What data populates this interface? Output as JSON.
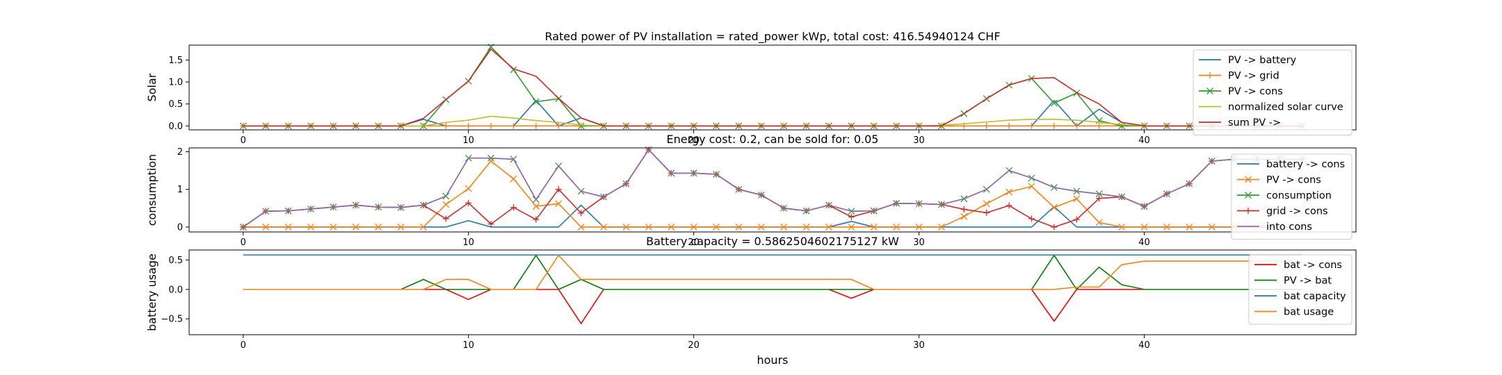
{
  "figure": {
    "xlabel": "hours"
  },
  "chart_data": [
    {
      "type": "line",
      "title": "Rated power of PV installation = rated_power kWp, total cost: 416.54940124 CHF",
      "xlabel": "",
      "ylabel": "Solar",
      "xlim": [
        -2.4,
        49.4
      ],
      "ylim": [
        -0.09,
        1.84
      ],
      "xticks": [
        0,
        10,
        20,
        30,
        40
      ],
      "yticks": [
        0.0,
        0.5,
        1.0,
        1.5
      ],
      "ytick_labels": [
        "0.0",
        "0.5",
        "1.0",
        "1.5"
      ],
      "grid": false,
      "legend_position": "top-right",
      "x": [
        0,
        1,
        2,
        3,
        4,
        5,
        6,
        7,
        8,
        9,
        10,
        11,
        12,
        13,
        14,
        15,
        16,
        17,
        18,
        19,
        20,
        21,
        22,
        23,
        24,
        25,
        26,
        27,
        28,
        29,
        30,
        31,
        32,
        33,
        34,
        35,
        36,
        37,
        38,
        39,
        40,
        41,
        42,
        43,
        44,
        45,
        46,
        47
      ],
      "series": [
        {
          "name": "PV -> battery",
          "color": "#1f77b4",
          "marker": "none",
          "values": [
            0,
            0,
            0,
            0,
            0,
            0,
            0,
            0,
            0.15,
            0,
            0,
            0,
            0,
            0.58,
            0,
            0.18,
            0,
            0,
            0,
            0,
            0,
            0,
            0,
            0,
            0,
            0,
            0,
            0,
            0,
            0,
            0,
            0,
            0,
            0,
            0,
            0,
            0.58,
            0,
            0.38,
            0.08,
            0,
            0,
            0,
            0,
            0,
            0,
            0,
            0
          ]
        },
        {
          "name": "PV -> grid",
          "color": "#ff7f0e",
          "marker": "plus",
          "values": [
            0,
            0,
            0,
            0,
            0,
            0,
            0,
            0,
            0,
            0,
            0,
            0,
            0,
            0,
            0,
            0,
            0,
            0,
            0,
            0,
            0,
            0,
            0,
            0,
            0,
            0,
            0,
            0,
            0,
            0,
            0,
            0,
            0,
            0,
            0,
            0,
            0,
            0,
            0,
            0,
            0,
            0,
            0,
            0,
            0,
            0,
            0,
            0
          ]
        },
        {
          "name": "PV -> cons",
          "color": "#2ca02c",
          "marker": "x",
          "values": [
            0,
            0,
            0,
            0,
            0,
            0,
            0,
            0,
            0,
            0.6,
            1.02,
            1.8,
            1.28,
            0.55,
            0.62,
            0,
            0,
            0,
            0,
            0,
            0,
            0,
            0,
            0,
            0,
            0,
            0,
            0,
            0,
            0,
            0,
            0,
            0.28,
            0.62,
            0.93,
            1.08,
            0.52,
            0.75,
            0.12,
            0,
            0,
            0,
            0,
            0,
            0,
            0,
            0,
            0
          ]
        },
        {
          "name": "normalized solar curve",
          "color": "#bcbd22",
          "marker": "none",
          "values": [
            0,
            0,
            0,
            0,
            0,
            0,
            0,
            0,
            0,
            0.08,
            0.13,
            0.22,
            0.18,
            0.12,
            0.08,
            0.02,
            0,
            0,
            0,
            0,
            0,
            0,
            0,
            0,
            0,
            0,
            0,
            0,
            0,
            0,
            0,
            0.01,
            0.05,
            0.09,
            0.13,
            0.15,
            0.15,
            0.13,
            0.08,
            0.03,
            0,
            0,
            0,
            0,
            0,
            0,
            0,
            0
          ]
        },
        {
          "name": "sum PV ->",
          "color": "#d62728",
          "marker": "none",
          "values": [
            0,
            0,
            0,
            0,
            0,
            0,
            0,
            0,
            0.17,
            0.6,
            1.02,
            1.75,
            1.3,
            1.13,
            0.63,
            0.18,
            0,
            0,
            0,
            0,
            0,
            0,
            0,
            0,
            0,
            0,
            0,
            0,
            0,
            0,
            0,
            0,
            0.28,
            0.62,
            0.93,
            1.08,
            1.1,
            0.76,
            0.5,
            0.08,
            0,
            0,
            0,
            0,
            0,
            0,
            0,
            0
          ]
        }
      ]
    },
    {
      "type": "line",
      "title": "Energy cost: 0.2, can be sold for: 0.05",
      "xlabel": "",
      "ylabel": "consumption",
      "xlim": [
        -2.4,
        49.4
      ],
      "ylim": [
        -0.13,
        2.1
      ],
      "xticks": [
        0,
        10,
        20,
        30,
        40
      ],
      "yticks": [
        0,
        1,
        2
      ],
      "ytick_labels": [
        "0",
        "1",
        "2"
      ],
      "grid": false,
      "legend_position": "top-right",
      "x": [
        0,
        1,
        2,
        3,
        4,
        5,
        6,
        7,
        8,
        9,
        10,
        11,
        12,
        13,
        14,
        15,
        16,
        17,
        18,
        19,
        20,
        21,
        22,
        23,
        24,
        25,
        26,
        27,
        28,
        29,
        30,
        31,
        32,
        33,
        34,
        35,
        36,
        37,
        38,
        39,
        40,
        41,
        42,
        43,
        44,
        45,
        46,
        47
      ],
      "series": [
        {
          "name": "battery -> cons",
          "color": "#1f77b4",
          "marker": "none",
          "values": [
            0,
            0,
            0,
            0,
            0,
            0,
            0,
            0,
            0,
            0,
            0.17,
            0,
            0,
            0,
            0,
            0.58,
            0,
            0,
            0,
            0,
            0,
            0,
            0,
            0,
            0,
            0,
            0,
            0.15,
            0,
            0,
            0,
            0,
            0,
            0,
            0,
            0,
            0.54,
            0,
            0,
            0,
            0,
            0,
            0,
            0,
            0,
            0,
            0,
            0
          ]
        },
        {
          "name": "PV -> cons",
          "color": "#ff7f0e",
          "marker": "x",
          "values": [
            0,
            0,
            0,
            0,
            0,
            0,
            0,
            0,
            0,
            0.6,
            1.02,
            1.75,
            1.28,
            0.55,
            0.62,
            0,
            0,
            0,
            0,
            0,
            0,
            0,
            0,
            0,
            0,
            0,
            0,
            0,
            0,
            0,
            0,
            0,
            0.28,
            0.62,
            0.93,
            1.08,
            0.52,
            0.75,
            0.12,
            0,
            0,
            0,
            0,
            0,
            0,
            0,
            0,
            0
          ]
        },
        {
          "name": "consumption",
          "color": "#2ca02c",
          "marker": "x",
          "values": [
            0,
            0.42,
            0.43,
            0.48,
            0.53,
            0.58,
            0.53,
            0.52,
            0.58,
            0.82,
            1.83,
            1.83,
            1.8,
            0.73,
            1.62,
            0.95,
            0.8,
            1.15,
            2.05,
            1.43,
            1.43,
            1.4,
            1.0,
            0.85,
            0.5,
            0.43,
            0.58,
            0.42,
            0.43,
            0.63,
            0.62,
            0.6,
            0.75,
            1.0,
            1.5,
            1.3,
            1.05,
            0.95,
            0.88,
            0.8,
            0.55,
            0.88,
            1.15,
            1.75,
            1.8,
            1.8,
            1.8,
            1.8
          ]
        },
        {
          "name": "grid -> cons",
          "color": "#d62728",
          "marker": "plus",
          "values": [
            0,
            0.42,
            0.43,
            0.48,
            0.53,
            0.58,
            0.53,
            0.52,
            0.58,
            0.22,
            0.64,
            0.08,
            0.52,
            0.2,
            1.0,
            0.37,
            0.8,
            1.15,
            2.05,
            1.43,
            1.43,
            1.4,
            1.0,
            0.85,
            0.5,
            0.43,
            0.58,
            0.27,
            0.43,
            0.63,
            0.62,
            0.6,
            0.47,
            0.38,
            0.57,
            0.22,
            0,
            0.2,
            0.76,
            0.8,
            0.55,
            0.88,
            1.15,
            1.75,
            1.8,
            1.8,
            1.8,
            1.8
          ]
        },
        {
          "name": "into cons",
          "color": "#9467bd",
          "marker": "none",
          "values": [
            0,
            0.42,
            0.43,
            0.48,
            0.53,
            0.58,
            0.53,
            0.52,
            0.58,
            0.82,
            1.83,
            1.83,
            1.8,
            0.73,
            1.62,
            0.95,
            0.8,
            1.15,
            2.05,
            1.43,
            1.43,
            1.4,
            1.0,
            0.85,
            0.5,
            0.43,
            0.58,
            0.42,
            0.43,
            0.63,
            0.62,
            0.6,
            0.75,
            1.0,
            1.5,
            1.3,
            1.05,
            0.95,
            0.88,
            0.8,
            0.55,
            0.88,
            1.15,
            1.75,
            1.8,
            1.8,
            1.8,
            1.8
          ]
        }
      ]
    },
    {
      "type": "line",
      "title": "Battery capacity = 0.5862504602175127 kW",
      "xlabel": "hours",
      "ylabel": "battery usage",
      "xlim": [
        -2.4,
        49.4
      ],
      "ylim": [
        -0.77,
        0.67
      ],
      "xticks": [
        0,
        10,
        20,
        30,
        40
      ],
      "yticks": [
        0.5,
        0.0,
        -0.5
      ],
      "ytick_labels": [
        "0.5",
        "0.0",
        "−0.5"
      ],
      "grid": false,
      "legend_position": "top-right",
      "x": [
        0,
        1,
        2,
        3,
        4,
        5,
        6,
        7,
        8,
        9,
        10,
        11,
        12,
        13,
        14,
        15,
        16,
        17,
        18,
        19,
        20,
        21,
        22,
        23,
        24,
        25,
        26,
        27,
        28,
        29,
        30,
        31,
        32,
        33,
        34,
        35,
        36,
        37,
        38,
        39,
        40,
        41,
        42,
        43,
        44,
        45,
        46,
        47
      ],
      "series": [
        {
          "name": "bat -> cons",
          "color": "#ff0000",
          "marker": "none",
          "values": [
            0,
            0,
            0,
            0,
            0,
            0,
            0,
            0,
            0,
            0,
            -0.17,
            0,
            0,
            0,
            0,
            -0.58,
            0,
            0,
            0,
            0,
            0,
            0,
            0,
            0,
            0,
            0,
            0,
            -0.15,
            0,
            0,
            0,
            0,
            0,
            0,
            0,
            0,
            -0.54,
            0,
            0,
            0,
            0,
            0,
            0,
            0,
            0,
            0,
            0,
            0
          ]
        },
        {
          "name": "PV -> bat",
          "color": "#008000",
          "marker": "none",
          "values": [
            0,
            0,
            0,
            0,
            0,
            0,
            0,
            0,
            0.17,
            0,
            0,
            0,
            0,
            0.58,
            0,
            0.17,
            0,
            0,
            0,
            0,
            0,
            0,
            0,
            0,
            0,
            0,
            0,
            0,
            0,
            0,
            0,
            0,
            0,
            0,
            0,
            0,
            0.58,
            0,
            0.38,
            0.08,
            0,
            0,
            0,
            0,
            0,
            0,
            0,
            0
          ]
        },
        {
          "name": "bat capacity",
          "color": "#1f77b4",
          "marker": "none",
          "values": [
            0.586,
            0.586,
            0.586,
            0.586,
            0.586,
            0.586,
            0.586,
            0.586,
            0.586,
            0.586,
            0.586,
            0.586,
            0.586,
            0.586,
            0.586,
            0.586,
            0.586,
            0.586,
            0.586,
            0.586,
            0.586,
            0.586,
            0.586,
            0.586,
            0.586,
            0.586,
            0.586,
            0.586,
            0.586,
            0.586,
            0.586,
            0.586,
            0.586,
            0.586,
            0.586,
            0.586,
            0.586,
            0.586,
            0.586,
            0.586,
            0.586,
            0.586,
            0.586,
            0.586,
            0.586,
            0.586,
            0.586,
            0.586
          ]
        },
        {
          "name": "bat usage",
          "color": "#ff7f0e",
          "marker": "none",
          "values": [
            0,
            0,
            0,
            0,
            0,
            0,
            0,
            0,
            0,
            0.17,
            0.17,
            0,
            0,
            0,
            0.58,
            0.17,
            0.17,
            0.17,
            0.17,
            0.17,
            0.17,
            0.17,
            0.17,
            0.17,
            0.17,
            0.17,
            0.17,
            0.17,
            0,
            0,
            0,
            0,
            0,
            0,
            0,
            0,
            0,
            0.04,
            0.04,
            0.42,
            0.48,
            0.48,
            0.48,
            0.48,
            0.48,
            0.48,
            0.48,
            0.48
          ]
        }
      ]
    }
  ]
}
